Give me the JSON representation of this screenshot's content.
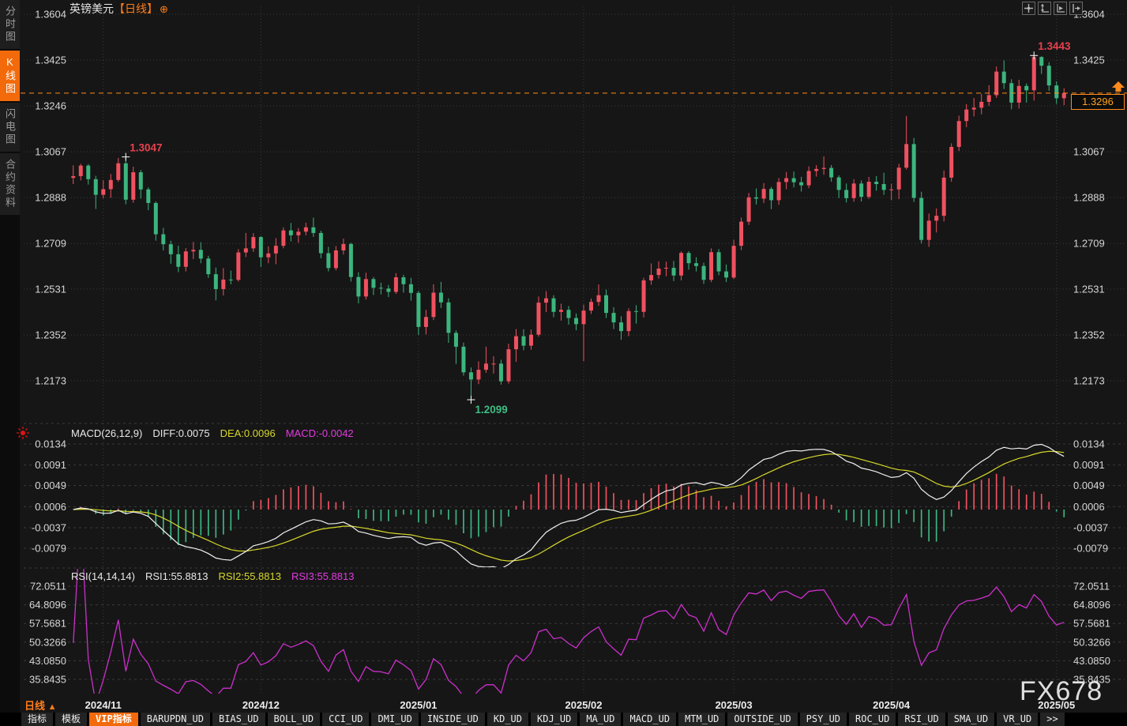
{
  "header": {
    "symbol": "英镑美元",
    "period_tag": "【日线】",
    "add_icon": "⊕"
  },
  "toolbar": {
    "icons": [
      "crosshair",
      "fit-vertical",
      "auto-scale",
      "goto-latest"
    ]
  },
  "sidebar": {
    "items": [
      {
        "label": "分时图",
        "active": false
      },
      {
        "label": "K线图",
        "active": true
      },
      {
        "label": "闪电图",
        "active": false
      },
      {
        "label": "合约资料",
        "active": false
      }
    ]
  },
  "legends": {
    "macd": {
      "name": "MACD(26,12,9)",
      "diff": "DIFF:0.0075",
      "dea": "DEA:0.0096",
      "macd": "MACD:-0.0042"
    },
    "rsi": {
      "name": "RSI(14,14,14)",
      "rsi1": "RSI1:55.8813",
      "rsi2": "RSI2:55.8813",
      "rsi3": "RSI3:55.8813"
    }
  },
  "price_tag": {
    "value": "1.3296"
  },
  "footer": {
    "period_label": "日线",
    "arrow": "▲",
    "watermark": "FX678"
  },
  "tabbar": {
    "active": "VIP指标",
    "tabs": [
      "指标",
      "模板",
      "VIP指标",
      "BARUPDN_UD",
      "BIAS_UD",
      "BOLL_UD",
      "CCI_UD",
      "DMI_UD",
      "INSIDE_UD",
      "KD_UD",
      "KDJ_UD",
      "MA_UD",
      "MACD_UD",
      "MTM_UD",
      "OUTSIDE_UD",
      "PSY_UD",
      "ROC_UD",
      "RSI_UD",
      "SMA_UD",
      "VR_UD",
      ">>"
    ]
  },
  "colors": {
    "up_candle": "#ef5160",
    "down_candle": "#3cb57f",
    "accent_orange": "#ff7d1a",
    "price_line": "#ff8a1e",
    "diff_line": "#f0f0f0",
    "dea_line": "#d7d72c",
    "macd_value": "#e23ae2",
    "rsi_line": "#cc2fcc",
    "marker_high": "#e8414f",
    "marker_low": "#3fbd84",
    "axis_text": "#d6d6d6",
    "grid": "#3b3b3b",
    "date_text": "#ededed"
  },
  "chart_data": {
    "type": "candlestick",
    "title": "英镑美元【日线】",
    "panes": [
      "price",
      "MACD(26,12,9)",
      "RSI(14,14,14)"
    ],
    "price_ticks": [
      "1.3604",
      "1.3425",
      "1.3246",
      "1.3067",
      "1.2888",
      "1.2709",
      "1.2531",
      "1.2352",
      "1.2173"
    ],
    "macd_ticks": [
      "0.0134",
      "0.0091",
      "0.0049",
      "0.0006",
      "-0.0037",
      "-0.0079"
    ],
    "rsi_ticks": [
      "72.0511",
      "64.8096",
      "57.5681",
      "50.3266",
      "43.0850",
      "35.8435"
    ],
    "months": [
      {
        "label": "2024/11",
        "index": 4
      },
      {
        "label": "2024/12",
        "index": 25
      },
      {
        "label": "2025/01",
        "index": 46
      },
      {
        "label": "2025/02",
        "index": 68
      },
      {
        "label": "2025/03",
        "index": 88
      },
      {
        "label": "2025/04",
        "index": 109
      },
      {
        "label": "2025/05",
        "index": 131
      }
    ],
    "current_price": 1.3296,
    "markers": [
      {
        "type": "high",
        "label": "1.3047",
        "index": 7,
        "price": 1.3047
      },
      {
        "type": "low",
        "label": "1.2099",
        "index": 53,
        "price": 1.2099
      },
      {
        "type": "high",
        "label": "1.3443",
        "index": 128,
        "price": 1.3443
      }
    ],
    "indicators": {
      "macd": {
        "slow": 26,
        "fast": 12,
        "signal": 9
      },
      "rsi": [
        14,
        14,
        14
      ]
    },
    "candles": {
      "opens": [
        1.2965,
        1.2972,
        1.3013,
        1.296,
        1.2899,
        1.2921,
        1.2957,
        1.3022,
        1.288,
        1.2987,
        1.292,
        1.2867,
        1.2745,
        1.2706,
        1.2667,
        1.2618,
        1.2678,
        1.2684,
        1.265,
        1.2589,
        1.2531,
        1.2568,
        1.2567,
        1.2674,
        1.269,
        1.2734,
        1.2655,
        1.267,
        1.27,
        1.276,
        1.2741,
        1.2755,
        1.2772,
        1.275,
        1.2671,
        1.2613,
        1.2682,
        1.2707,
        1.2578,
        1.2502,
        1.257,
        1.2536,
        1.2533,
        1.252,
        1.2577,
        1.255,
        1.2516,
        1.2383,
        1.2422,
        1.2517,
        1.2479,
        1.236,
        1.2306,
        1.2206,
        1.2178,
        1.2216,
        1.224,
        1.224,
        1.2171,
        1.2296,
        1.2347,
        1.231,
        1.2353,
        1.2478,
        1.2495,
        1.2442,
        1.245,
        1.2418,
        1.2394,
        1.2447,
        1.2481,
        1.2507,
        1.2438,
        1.2401,
        1.2367,
        1.2445,
        1.2442,
        1.2565,
        1.2586,
        1.2611,
        1.2614,
        1.2584,
        1.2672,
        1.2632,
        1.2621,
        1.2567,
        1.2675,
        1.26,
        1.2576,
        1.27,
        1.2794,
        1.2889,
        1.2884,
        1.2922,
        1.2878,
        1.2949,
        1.2964,
        1.2948,
        1.2936,
        1.2992,
        1.3,
        1.3004,
        1.2967,
        1.2918,
        1.2886,
        1.2943,
        1.2891,
        1.295,
        1.2941,
        1.2918,
        1.292,
        1.3005,
        1.3097,
        1.2887,
        1.2723,
        1.2798,
        1.2817,
        1.2966,
        1.3086,
        1.3187,
        1.3232,
        1.3239,
        1.3262,
        1.3288,
        1.338,
        1.3335,
        1.3259,
        1.3324,
        1.3307,
        1.3437,
        1.3403,
        1.3326,
        1.3276
      ],
      "highs": [
        1.3014,
        1.302,
        1.3019,
        1.2973,
        1.2956,
        1.298,
        1.3043,
        1.3047,
        1.3009,
        1.2996,
        1.2928,
        1.2873,
        1.277,
        1.272,
        1.27,
        1.2691,
        1.2715,
        1.2714,
        1.2661,
        1.2615,
        1.2613,
        1.2603,
        1.2687,
        1.275,
        1.2749,
        1.2738,
        1.2698,
        1.273,
        1.2772,
        1.2789,
        1.2769,
        1.279,
        1.281,
        1.2759,
        1.2696,
        1.2699,
        1.2728,
        1.2712,
        1.2597,
        1.2595,
        1.2578,
        1.2556,
        1.2547,
        1.2593,
        1.2587,
        1.2575,
        1.2524,
        1.245,
        1.255,
        1.2559,
        1.2495,
        1.237,
        1.2322,
        1.2225,
        1.2249,
        1.2306,
        1.2269,
        1.2255,
        1.2318,
        1.2375,
        1.2374,
        1.2373,
        1.2502,
        1.2523,
        1.2507,
        1.2474,
        1.2465,
        1.2436,
        1.247,
        1.2494,
        1.2549,
        1.2529,
        1.246,
        1.2425,
        1.2456,
        1.2468,
        1.2575,
        1.2631,
        1.2639,
        1.2638,
        1.2641,
        1.2678,
        1.2679,
        1.2655,
        1.2634,
        1.269,
        1.2687,
        1.2627,
        1.2724,
        1.281,
        1.2906,
        1.2924,
        1.2945,
        1.293,
        1.2965,
        1.2988,
        1.299,
        1.2969,
        1.301,
        1.3015,
        1.3049,
        1.3015,
        1.2975,
        1.2943,
        1.296,
        1.2955,
        1.2969,
        1.2972,
        1.2985,
        1.2942,
        1.302,
        1.3207,
        1.3121,
        1.2911,
        1.2826,
        1.2846,
        1.2994,
        1.31,
        1.3208,
        1.3253,
        1.3277,
        1.3293,
        1.3327,
        1.34,
        1.3424,
        1.335,
        1.3348,
        1.3334,
        1.3443,
        1.344,
        1.3417,
        1.3342,
        1.3315
      ],
      "lows": [
        1.2941,
        1.2955,
        1.2939,
        1.2844,
        1.2885,
        1.2887,
        1.295,
        1.2862,
        1.2868,
        1.2884,
        1.2839,
        1.272,
        1.2682,
        1.263,
        1.2597,
        1.26,
        1.2648,
        1.2632,
        1.2575,
        1.2487,
        1.2506,
        1.255,
        1.256,
        1.2656,
        1.2676,
        1.2617,
        1.2632,
        1.2628,
        1.269,
        1.2717,
        1.2712,
        1.2741,
        1.2735,
        1.2651,
        1.26,
        1.2604,
        1.2666,
        1.256,
        1.2475,
        1.249,
        1.2508,
        1.251,
        1.25,
        1.2512,
        1.2517,
        1.2486,
        1.2352,
        1.2354,
        1.241,
        1.2457,
        1.2321,
        1.2239,
        1.2193,
        1.2099,
        1.216,
        1.2204,
        1.2201,
        1.2158,
        1.2162,
        1.2247,
        1.2292,
        1.2294,
        1.2345,
        1.2441,
        1.2421,
        1.2408,
        1.2392,
        1.237,
        1.2249,
        1.2434,
        1.2466,
        1.2418,
        1.2375,
        1.2333,
        1.2347,
        1.2396,
        1.242,
        1.2548,
        1.2572,
        1.2581,
        1.2562,
        1.2565,
        1.2607,
        1.26,
        1.2551,
        1.2558,
        1.2585,
        1.2558,
        1.257,
        1.2683,
        1.2781,
        1.2861,
        1.2867,
        1.2843,
        1.286,
        1.2921,
        1.2928,
        1.2912,
        1.2925,
        1.297,
        1.2977,
        1.295,
        1.2886,
        1.2869,
        1.2872,
        1.2873,
        1.2883,
        1.2915,
        1.2899,
        1.2878,
        1.2882,
        1.2998,
        1.2871,
        1.2709,
        1.2696,
        1.2752,
        1.2795,
        1.295,
        1.307,
        1.3163,
        1.3205,
        1.3213,
        1.3246,
        1.3277,
        1.3312,
        1.3233,
        1.3236,
        1.3259,
        1.3267,
        1.3371,
        1.3305,
        1.3254,
        1.3249
      ],
      "closes": [
        1.2972,
        1.3013,
        1.296,
        1.2899,
        1.2921,
        1.2957,
        1.3022,
        1.288,
        1.2987,
        1.292,
        1.2867,
        1.2745,
        1.2706,
        1.2667,
        1.2618,
        1.2678,
        1.2684,
        1.265,
        1.2589,
        1.2531,
        1.2568,
        1.2567,
        1.2674,
        1.269,
        1.2734,
        1.2655,
        1.267,
        1.27,
        1.276,
        1.2741,
        1.2755,
        1.2772,
        1.275,
        1.2671,
        1.2613,
        1.2682,
        1.2707,
        1.2578,
        1.2502,
        1.257,
        1.2536,
        1.2533,
        1.252,
        1.2577,
        1.255,
        1.2516,
        1.2383,
        1.2422,
        1.2517,
        1.2479,
        1.236,
        1.2306,
        1.2206,
        1.2178,
        1.2216,
        1.224,
        1.224,
        1.2171,
        1.2296,
        1.2347,
        1.231,
        1.2353,
        1.2478,
        1.2495,
        1.2442,
        1.245,
        1.2418,
        1.2394,
        1.2447,
        1.2481,
        1.2507,
        1.2438,
        1.2401,
        1.2367,
        1.2445,
        1.2442,
        1.2565,
        1.2586,
        1.2611,
        1.2614,
        1.2584,
        1.2672,
        1.2632,
        1.2621,
        1.2567,
        1.2675,
        1.26,
        1.2576,
        1.27,
        1.2794,
        1.2889,
        1.2884,
        1.2922,
        1.2878,
        1.2949,
        1.2964,
        1.2948,
        1.2936,
        1.2992,
        1.3,
        1.3004,
        1.2967,
        1.2918,
        1.2886,
        1.2943,
        1.2891,
        1.295,
        1.2941,
        1.2918,
        1.292,
        1.3005,
        1.3097,
        1.2887,
        1.2723,
        1.2798,
        1.2817,
        1.2966,
        1.3086,
        1.3187,
        1.3232,
        1.3239,
        1.3262,
        1.3288,
        1.338,
        1.3335,
        1.3259,
        1.3324,
        1.3307,
        1.3437,
        1.3403,
        1.3326,
        1.3276,
        1.3296
      ]
    }
  }
}
